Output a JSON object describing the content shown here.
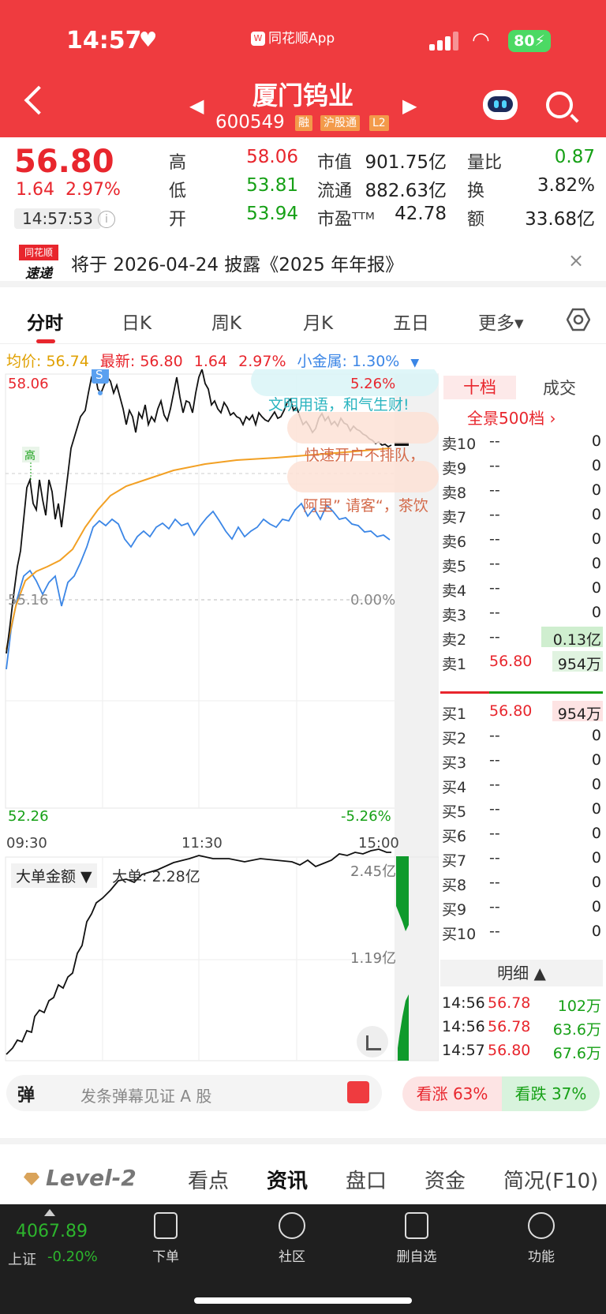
{
  "status_bar": {
    "time": "14:57",
    "app_label": "同花顺App",
    "battery": "80"
  },
  "header": {
    "stock_name": "厦门钨业",
    "stock_code": "600549",
    "tags": [
      "融",
      "沪股通",
      "L2"
    ]
  },
  "quote": {
    "price": "56.80",
    "change": "1.64",
    "change_pct": "2.97%",
    "time": "14:57:53",
    "stats": [
      {
        "label": "高",
        "value": "58.06",
        "color": "#e8262d"
      },
      {
        "label": "低",
        "value": "53.81",
        "color": "#16a016"
      },
      {
        "label": "开",
        "value": "53.94",
        "color": "#16a016"
      },
      {
        "label": "市值",
        "value": "901.75亿",
        "color": "#222222"
      },
      {
        "label": "流通",
        "value": "882.63亿",
        "color": "#222222"
      },
      {
        "label": "市盈ᵀᵀᴹ",
        "value": "42.78",
        "color": "#222222"
      },
      {
        "label": "量比",
        "value": "0.87",
        "color": "#16a016"
      },
      {
        "label": "换",
        "value": "3.82%",
        "color": "#222222"
      },
      {
        "label": "额",
        "value": "33.68亿",
        "color": "#222222"
      }
    ]
  },
  "banner": {
    "logo_top": "同花顺",
    "logo_bottom": "速递",
    "text": "将于 2026-04-24 披露《2025 年年报》",
    "close": "×"
  },
  "tabs": [
    "分时",
    "日K",
    "周K",
    "月K",
    "五日",
    "更多▾"
  ],
  "info_line": {
    "avg": "均价: 56.74",
    "latest": "最新: 56.80",
    "chg": "1.64",
    "pct": "2.97%",
    "sector": "小金属: 1.30%",
    "sector_arrow": "▼"
  },
  "chart": {
    "y_top": "58.06",
    "y_bottom": "52.26",
    "pct_top": "5.26%",
    "pct_bottom": "-5.26%",
    "mid_pct": "0.00%",
    "mid_price": "55.16",
    "x_labels": [
      "09:30",
      "11:30",
      "15:00"
    ],
    "high_marker": "高",
    "s_marker": "S",
    "danmaku": [
      "文明用语，和气生财!",
      "快速开户不排队，",
      "阿里” 请客“，茶饮"
    ],
    "lower_label": "大单金额 ▼",
    "lower_value": "大单: 2.28亿",
    "lower_top": "2.45亿",
    "lower_mid": "1.19亿"
  },
  "order_book": {
    "tab_ten": "十档",
    "tab_deal": "成交",
    "panorama": "全景500档 ›",
    "asks": [
      {
        "label": "卖10",
        "price": "--",
        "vol": "0"
      },
      {
        "label": "卖9",
        "price": "--",
        "vol": "0"
      },
      {
        "label": "卖8",
        "price": "--",
        "vol": "0"
      },
      {
        "label": "卖7",
        "price": "--",
        "vol": "0"
      },
      {
        "label": "卖6",
        "price": "--",
        "vol": "0"
      },
      {
        "label": "卖5",
        "price": "--",
        "vol": "0"
      },
      {
        "label": "卖4",
        "price": "--",
        "vol": "0"
      },
      {
        "label": "卖3",
        "price": "--",
        "vol": "0"
      },
      {
        "label": "卖2",
        "price": "--",
        "vol": "0.13亿"
      },
      {
        "label": "卖1",
        "price": "56.80",
        "vol": "954万"
      }
    ],
    "bids": [
      {
        "label": "买1",
        "price": "56.80",
        "vol": "954万"
      },
      {
        "label": "买2",
        "price": "--",
        "vol": "0"
      },
      {
        "label": "买3",
        "price": "--",
        "vol": "0"
      },
      {
        "label": "买4",
        "price": "--",
        "vol": "0"
      },
      {
        "label": "买5",
        "price": "--",
        "vol": "0"
      },
      {
        "label": "买6",
        "price": "--",
        "vol": "0"
      },
      {
        "label": "买7",
        "price": "--",
        "vol": "0"
      },
      {
        "label": "买8",
        "price": "--",
        "vol": "0"
      },
      {
        "label": "买9",
        "price": "--",
        "vol": "0"
      },
      {
        "label": "买10",
        "price": "--",
        "vol": "0"
      }
    ],
    "detail_head": "明细 ▲",
    "details": [
      {
        "time": "14:56",
        "price": "56.78",
        "vol": "102万"
      },
      {
        "time": "14:56",
        "price": "56.78",
        "vol": "63.6万"
      },
      {
        "time": "14:57",
        "price": "56.80",
        "vol": "67.6万"
      }
    ]
  },
  "danmu": {
    "icon": "弹",
    "placeholder": "发条弹幕见证 A 股",
    "bull": "看涨 63%",
    "bear": "看跌 37%"
  },
  "section_tabs": [
    "Level-2",
    "看点",
    "资讯",
    "盘口",
    "资金",
    "简况(F10)"
  ],
  "bottom_nav": {
    "index_value": "4067.89",
    "index_name": "上证",
    "index_change": "-0.20%",
    "items": [
      "下单",
      "社区",
      "删自选",
      "功能"
    ]
  }
}
